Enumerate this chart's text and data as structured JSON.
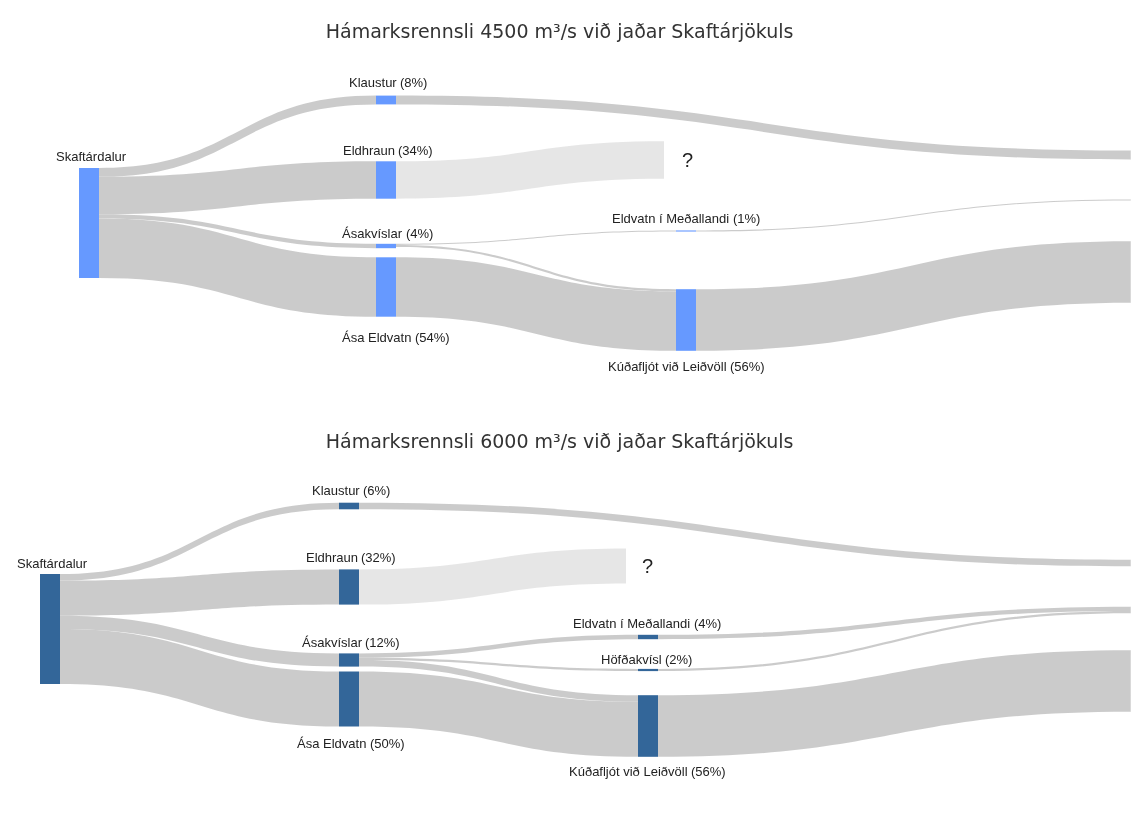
{
  "chart_data": [
    {
      "type": "other",
      "title": "Hámarksrennsli 4500 m³/s við jaðar Skaftárjökuls",
      "categories": [
        "Skaftárdalur",
        "Klaustur",
        "Eldhraun",
        "Ásakvíslar",
        "Ása Eldvatn",
        "Eldvatn í Meðallandi",
        "Kúðafljót við Leiðvöll",
        "?",
        null,
        null,
        null
      ],
      "values": [
        null,
        8,
        34,
        4,
        54,
        1,
        56,
        null,
        null,
        null,
        null
      ],
      "value_labels": [
        null,
        "(8%)",
        "(34%)",
        "(4%)",
        "(54%)",
        "(1%)",
        "(56%)",
        null,
        null,
        null,
        null
      ],
      "colors": [
        "#6699ff",
        "#6699ff",
        "#6699ff",
        "#6699ff",
        "#6699ff",
        "#6699ff",
        "#6699ff",
        "#ffffff",
        "#ffffff",
        "#ffffff",
        "#ffffff"
      ]
    },
    {
      "type": "other",
      "title": "Hámarksrennsli 6000 m³/s við jaðar Skaftárjökuls",
      "categories": [
        "Skaftárdalur",
        "Klaustur",
        "Eldhraun",
        "Ásakvíslar",
        "Ása Eldvatn",
        "Eldvatn í Meðallandi",
        "Höfðakvísl",
        "Kúðafljót við Leiðvöll",
        "?",
        null,
        null,
        null
      ],
      "values": [
        null,
        6,
        32,
        12,
        50,
        4,
        2,
        56,
        null,
        null,
        null,
        null
      ],
      "value_labels": [
        null,
        "(6%)",
        "(32%)",
        "(12%)",
        "(50%)",
        "(4%)",
        "(2%)",
        "(56%)",
        null,
        null,
        null,
        null
      ],
      "colors": [
        "#336699",
        "#336699",
        "#336699",
        "#336699",
        "#336699",
        "#336699",
        "#336699",
        "#336699",
        "#ffffff",
        "#ffffff",
        "#ffffff",
        "#ffffff"
      ]
    }
  ]
}
